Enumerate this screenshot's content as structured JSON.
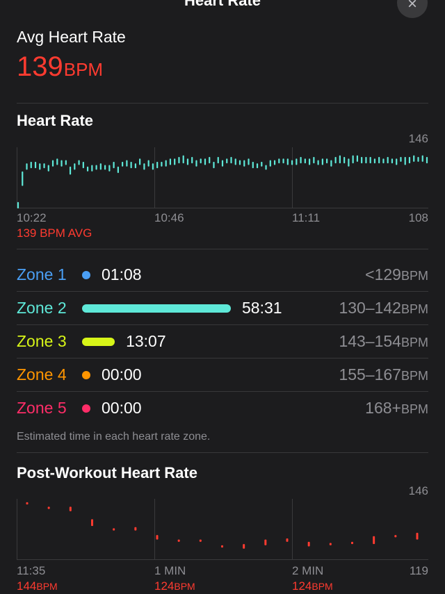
{
  "nav": {
    "title": "Heart Rate",
    "close_glyph": "×"
  },
  "summary": {
    "label": "Avg Heart Rate",
    "value": "139",
    "unit": "BPM",
    "accent": "#ff3b30"
  },
  "heart_rate_section": {
    "title": "Heart Rate",
    "avg_label": "139 BPM AVG"
  },
  "zones": {
    "items": [
      {
        "name": "Zone 1",
        "time": "01:08",
        "range": "<129",
        "unit": "BPM",
        "color": "#4a9ff5",
        "fraction": 0.0
      },
      {
        "name": "Zone 2",
        "time": "58:31",
        "range": "130–142",
        "unit": "BPM",
        "color": "#5ee8d8",
        "fraction": 1.0
      },
      {
        "name": "Zone 3",
        "time": "13:07",
        "range": "143–154",
        "unit": "BPM",
        "color": "#d7f518",
        "fraction": 0.22
      },
      {
        "name": "Zone 4",
        "time": "00:00",
        "range": "155–167",
        "unit": "BPM",
        "color": "#ff9500",
        "fraction": 0.0
      },
      {
        "name": "Zone 5",
        "time": "00:00",
        "range": "168+",
        "unit": "BPM",
        "color": "#ff2d68",
        "fraction": 0.0
      }
    ],
    "footnote": "Estimated time in each heart rate zone."
  },
  "post_section": {
    "title": "Post-Workout Heart Rate"
  },
  "chart_data": [
    {
      "type": "bar",
      "title": "Heart Rate",
      "x_tick_labels": [
        "10:22",
        "10:46",
        "11:11"
      ],
      "ylim": [
        108,
        146
      ],
      "y_tick_labels": [
        "146",
        "108"
      ],
      "color": "#5ee8d8",
      "grid": true,
      "ranges": [
        [
          108,
          112
        ],
        [
          122,
          131
        ],
        [
          132,
          136
        ],
        [
          133,
          137
        ],
        [
          133,
          137
        ],
        [
          132,
          136
        ],
        [
          133,
          136
        ],
        [
          131,
          135
        ],
        [
          134,
          138
        ],
        [
          135,
          139
        ],
        [
          134,
          138
        ],
        [
          135,
          138
        ],
        [
          129,
          134
        ],
        [
          132,
          136
        ],
        [
          135,
          138
        ],
        [
          133,
          137
        ],
        [
          131,
          134
        ],
        [
          131,
          135
        ],
        [
          132,
          135
        ],
        [
          132,
          136
        ],
        [
          132,
          135
        ],
        [
          131,
          135
        ],
        [
          133,
          137
        ],
        [
          130,
          134
        ],
        [
          134,
          137
        ],
        [
          134,
          138
        ],
        [
          133,
          137
        ],
        [
          133,
          136
        ],
        [
          135,
          139
        ],
        [
          132,
          136
        ],
        [
          134,
          138
        ],
        [
          132,
          136
        ],
        [
          133,
          137
        ],
        [
          134,
          137
        ],
        [
          134,
          138
        ],
        [
          135,
          139
        ],
        [
          135,
          139
        ],
        [
          136,
          140
        ],
        [
          136,
          141
        ],
        [
          135,
          139
        ],
        [
          136,
          140
        ],
        [
          134,
          138
        ],
        [
          136,
          139
        ],
        [
          135,
          139
        ],
        [
          136,
          140
        ],
        [
          133,
          137
        ],
        [
          136,
          140
        ],
        [
          134,
          138
        ],
        [
          136,
          139
        ],
        [
          136,
          140
        ],
        [
          135,
          139
        ],
        [
          135,
          138
        ],
        [
          134,
          138
        ],
        [
          135,
          139
        ],
        [
          133,
          137
        ],
        [
          133,
          136
        ],
        [
          134,
          137
        ],
        [
          132,
          135
        ],
        [
          134,
          138
        ],
        [
          135,
          138
        ],
        [
          136,
          139
        ],
        [
          136,
          139
        ],
        [
          135,
          139
        ],
        [
          135,
          138
        ],
        [
          135,
          139
        ],
        [
          136,
          140
        ],
        [
          136,
          139
        ],
        [
          135,
          139
        ],
        [
          136,
          140
        ],
        [
          135,
          138
        ],
        [
          135,
          139
        ],
        [
          136,
          139
        ],
        [
          134,
          138
        ],
        [
          136,
          140
        ],
        [
          136,
          141
        ],
        [
          136,
          140
        ],
        [
          134,
          139
        ],
        [
          136,
          141
        ],
        [
          137,
          141
        ],
        [
          136,
          140
        ],
        [
          136,
          140
        ],
        [
          136,
          140
        ],
        [
          136,
          139
        ],
        [
          136,
          140
        ],
        [
          136,
          139
        ],
        [
          136,
          140
        ],
        [
          136,
          139
        ],
        [
          135,
          139
        ],
        [
          137,
          140
        ],
        [
          135,
          140
        ],
        [
          136,
          140
        ],
        [
          137,
          141
        ],
        [
          137,
          140
        ],
        [
          137,
          141
        ],
        [
          136,
          140
        ]
      ]
    },
    {
      "type": "bar",
      "title": "Post-Workout Heart Rate",
      "x_tick_labels": [
        "11:35",
        "1 MIN",
        "2 MIN"
      ],
      "x_value_labels": [
        {
          "value": "144",
          "unit": "BPM"
        },
        {
          "value": "124",
          "unit": "BPM"
        },
        {
          "value": "124",
          "unit": "BPM"
        }
      ],
      "ylim": [
        119,
        146
      ],
      "y_tick_labels": [
        "146",
        "119"
      ],
      "color": "#ff3b30",
      "grid": true,
      "ranges": [
        [
          143.5,
          144.5
        ],
        [
          141.5,
          142.5
        ],
        [
          140.5,
          142.5
        ],
        [
          134,
          137
        ],
        [
          132,
          133
        ],
        [
          132,
          133.5
        ],
        [
          128,
          130
        ],
        [
          127,
          128
        ],
        [
          127,
          128
        ],
        [
          124.5,
          125.5
        ],
        [
          124,
          126
        ],
        [
          125.5,
          128
        ],
        [
          127,
          128.5
        ],
        [
          125,
          127
        ],
        [
          125.5,
          126.5
        ],
        [
          126,
          127
        ],
        [
          126,
          129.5
        ],
        [
          129,
          130
        ],
        [
          128,
          131
        ]
      ]
    }
  ]
}
